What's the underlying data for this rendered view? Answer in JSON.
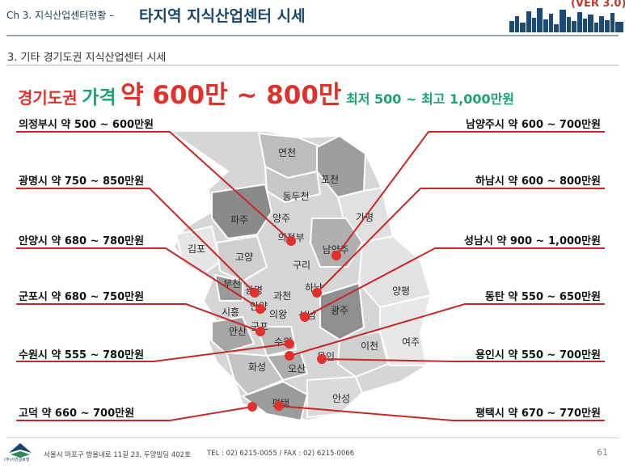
{
  "header": {
    "crumb": "Ch 3. 지식산업센터현황 –",
    "title": "타지역 지식산업센터 시세",
    "version": "(VER 3.0)"
  },
  "section": {
    "title": "3. 기타 경기도권 지식산업센터 시세"
  },
  "headline": {
    "region": "경기도권",
    "price_label": "가격",
    "range": "약 600만 ~ 800만",
    "minmax": "최저  500 ~ 최고 1,000만원"
  },
  "map": {
    "region_labels": [
      "연천",
      "포천",
      "동두천",
      "파주",
      "양주",
      "의정부",
      "가평",
      "김포",
      "고양",
      "남양주",
      "구리",
      "부천",
      "광명",
      "하남",
      "과천",
      "양평",
      "시흥",
      "안양",
      "의왕",
      "성남",
      "광주",
      "안산",
      "군포",
      "수원",
      "용인",
      "이천",
      "여주",
      "화성",
      "오산",
      "평택",
      "안성"
    ]
  },
  "labels": {
    "left": [
      "의정부시 약 500 ~ 600만원",
      "광명시 약 750 ~ 850만원",
      "안양시 약 680 ~ 780만원",
      "군포시 약 680 ~ 750만원",
      "수원시 약 555 ~ 780만원",
      "고덕 약 660 ~ 700만원"
    ],
    "right": [
      "남양주시 약 600 ~ 700만원",
      "하남시 약 600 ~ 800만원",
      "성남시 약 900 ~ 1,000만원",
      "동탄 약 550 ~ 650만원",
      "용인시 약 550 ~ 700만원",
      "평택시 약 670 ~ 770만원"
    ]
  },
  "footer": {
    "company": "(주)서연글로벌",
    "address": "서울시 마포구 방울내로 11길 23, 두양빌딩 402호",
    "tel": "TEL : 02) 6215-0055 / FAX : 02) 6215-0066",
    "page": "61"
  },
  "colors": {
    "accent_red": "#e0322d",
    "green": "#1da36f",
    "navy": "#1a4468",
    "line_red": "#c62828"
  }
}
